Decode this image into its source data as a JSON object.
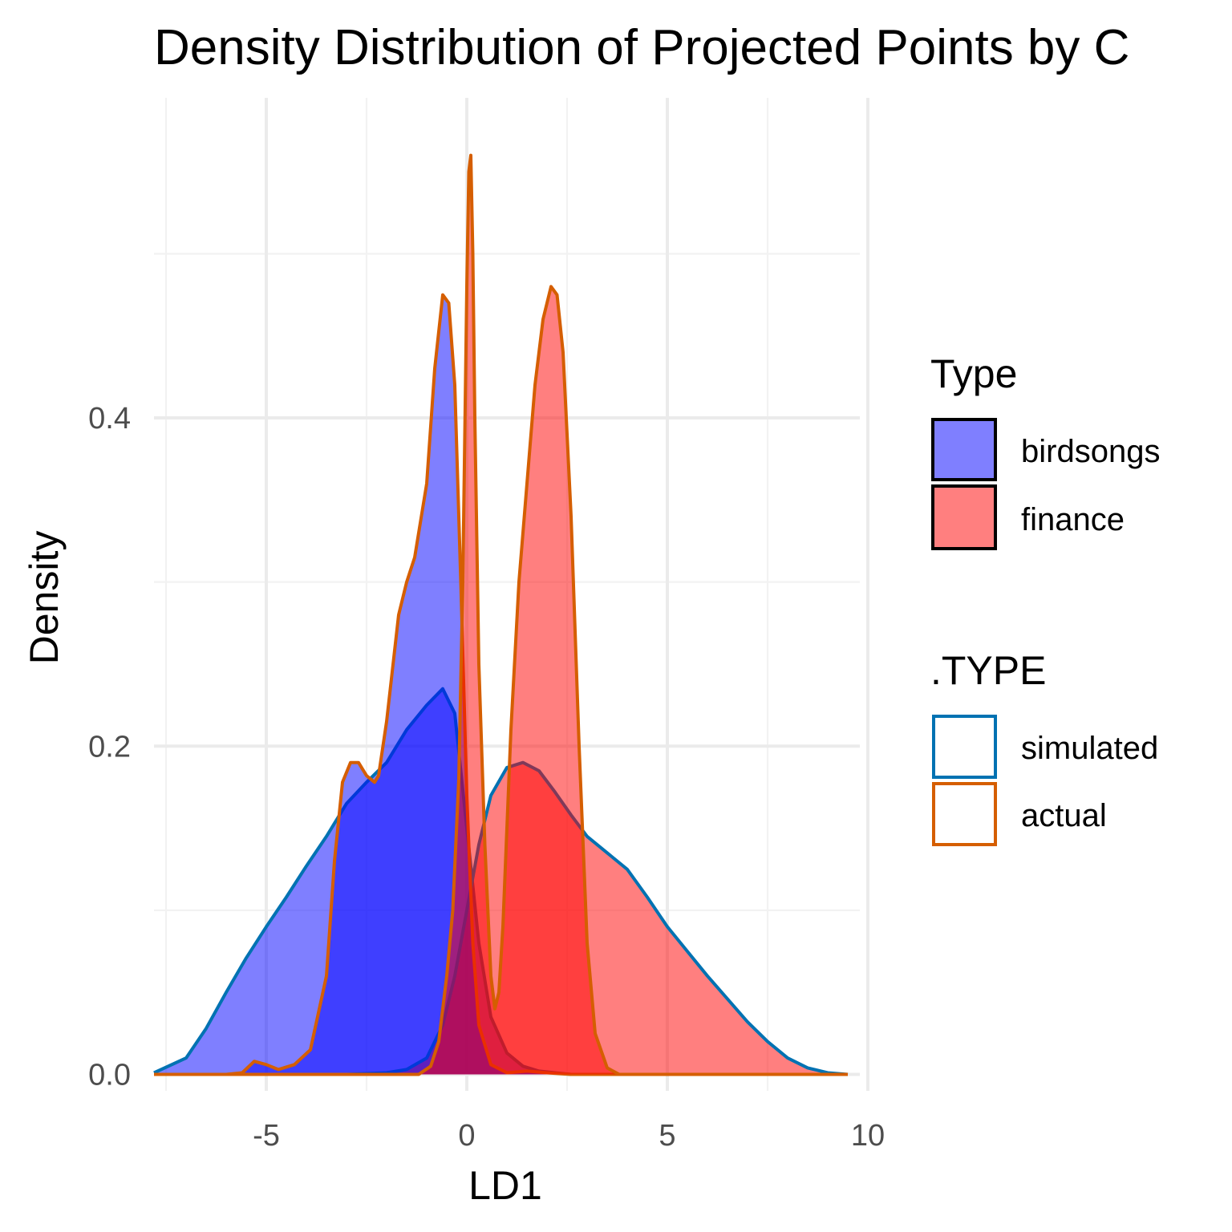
{
  "chart_data": {
    "type": "area",
    "title": "Density Distribution of Projected Points by C",
    "xlabel": "LD1",
    "ylabel": "Density",
    "xlim": [
      -7.8,
      9.8
    ],
    "ylim": [
      -0.01,
      0.595
    ],
    "x_ticks": [
      -5,
      0,
      5,
      10
    ],
    "x_tick_labels": [
      "-5",
      "0",
      "5",
      "10"
    ],
    "y_ticks": [
      0.0,
      0.2,
      0.4
    ],
    "y_tick_labels": [
      "0.0",
      "0.2",
      "0.4"
    ],
    "x_minor_ticks": [
      -7.5,
      -2.5,
      2.5,
      7.5
    ],
    "y_minor_ticks": [
      0.1,
      0.3,
      0.5
    ],
    "grid": true,
    "legend_position": "right",
    "fill_legend": {
      "title": "Type",
      "entries": [
        {
          "label": "birdsongs",
          "color": "#0000FF"
        },
        {
          "label": "finance",
          "color": "#FF0000"
        }
      ]
    },
    "color_legend": {
      "title": ".TYPE",
      "entries": [
        {
          "label": "simulated",
          "color": "#0072B2"
        },
        {
          "label": "actual",
          "color": "#D55E00"
        }
      ]
    },
    "series": [
      {
        "name": "birdsongs",
        "type_key": "simulated",
        "fill": "#0000FF",
        "stroke": "#0072B2",
        "x": [
          -7.8,
          -7.0,
          -6.5,
          -6.0,
          -5.5,
          -5.0,
          -4.5,
          -4.0,
          -3.5,
          -3.0,
          -2.5,
          -2.0,
          -1.5,
          -1.0,
          -0.6,
          -0.3,
          0.0,
          0.3,
          0.6,
          1.0,
          1.4,
          1.8,
          2.2,
          2.6,
          3.0,
          3.5,
          4.0,
          4.5,
          5.0,
          5.5,
          6.0,
          6.5,
          7.0,
          7.5,
          8.0,
          8.5,
          9.0,
          9.5
        ],
        "y": [
          0.001,
          0.01,
          0.028,
          0.05,
          0.071,
          0.09,
          0.108,
          0.127,
          0.145,
          0.165,
          0.178,
          0.19,
          0.21,
          0.225,
          0.235,
          0.22,
          0.15,
          0.08,
          0.035,
          0.013,
          0.005,
          0.002,
          0.001,
          0.0,
          0.0,
          0.0,
          0.0,
          0.0,
          0.0,
          0.0,
          0.0,
          0.0,
          0.0,
          0.0,
          0.0,
          0.0,
          0.0,
          0.0
        ]
      },
      {
        "name": "finance",
        "type_key": "simulated",
        "fill": "#FF0000",
        "stroke": "#0072B2",
        "x": [
          -7.8,
          -3.0,
          -2.0,
          -1.5,
          -1.0,
          -0.6,
          -0.3,
          0.0,
          0.3,
          0.6,
          1.0,
          1.4,
          1.8,
          2.2,
          2.6,
          3.0,
          3.5,
          4.0,
          4.5,
          5.0,
          5.5,
          6.0,
          6.5,
          7.0,
          7.5,
          8.0,
          8.5,
          9.0,
          9.5
        ],
        "y": [
          0.0,
          0.0,
          0.001,
          0.003,
          0.01,
          0.03,
          0.06,
          0.1,
          0.14,
          0.17,
          0.187,
          0.19,
          0.185,
          0.172,
          0.158,
          0.145,
          0.135,
          0.125,
          0.108,
          0.09,
          0.075,
          0.06,
          0.046,
          0.032,
          0.02,
          0.01,
          0.004,
          0.001,
          0.0
        ]
      },
      {
        "name": "birdsongs",
        "type_key": "actual",
        "fill": "#0000FF",
        "stroke": "#D55E00",
        "x": [
          -7.8,
          -6.0,
          -5.6,
          -5.3,
          -5.0,
          -4.7,
          -4.3,
          -3.9,
          -3.5,
          -3.3,
          -3.1,
          -2.9,
          -2.7,
          -2.6,
          -2.5,
          -2.3,
          -2.2,
          -2.0,
          -1.7,
          -1.5,
          -1.3,
          -1.0,
          -0.8,
          -0.6,
          -0.45,
          -0.3,
          -0.15,
          0.0,
          0.15,
          0.3,
          0.6,
          1.0,
          1.5,
          2.0,
          2.6,
          3.0,
          9.5
        ],
        "y": [
          0.0,
          0.0,
          0.001,
          0.008,
          0.006,
          0.003,
          0.006,
          0.015,
          0.06,
          0.13,
          0.178,
          0.19,
          0.19,
          0.186,
          0.182,
          0.178,
          0.182,
          0.215,
          0.28,
          0.3,
          0.315,
          0.36,
          0.43,
          0.475,
          0.47,
          0.42,
          0.3,
          0.17,
          0.08,
          0.03,
          0.006,
          0.001,
          0.002,
          0.001,
          0.0,
          0.0,
          0.0
        ]
      },
      {
        "name": "finance",
        "type_key": "actual",
        "fill": "#FF0000",
        "stroke": "#D55E00",
        "x": [
          -7.8,
          -1.2,
          -0.9,
          -0.7,
          -0.5,
          -0.35,
          -0.2,
          -0.1,
          0.0,
          0.05,
          0.1,
          0.15,
          0.2,
          0.3,
          0.45,
          0.6,
          0.7,
          0.8,
          0.9,
          1.0,
          1.1,
          1.3,
          1.5,
          1.7,
          1.9,
          2.1,
          2.25,
          2.4,
          2.6,
          2.8,
          3.0,
          3.2,
          3.5,
          3.8,
          9.5
        ],
        "y": [
          0.0,
          0.0,
          0.005,
          0.02,
          0.06,
          0.1,
          0.18,
          0.3,
          0.48,
          0.55,
          0.56,
          0.5,
          0.4,
          0.25,
          0.14,
          0.06,
          0.04,
          0.05,
          0.09,
          0.15,
          0.21,
          0.3,
          0.36,
          0.42,
          0.46,
          0.48,
          0.475,
          0.44,
          0.34,
          0.2,
          0.08,
          0.025,
          0.004,
          0.0,
          0.0
        ]
      }
    ]
  }
}
